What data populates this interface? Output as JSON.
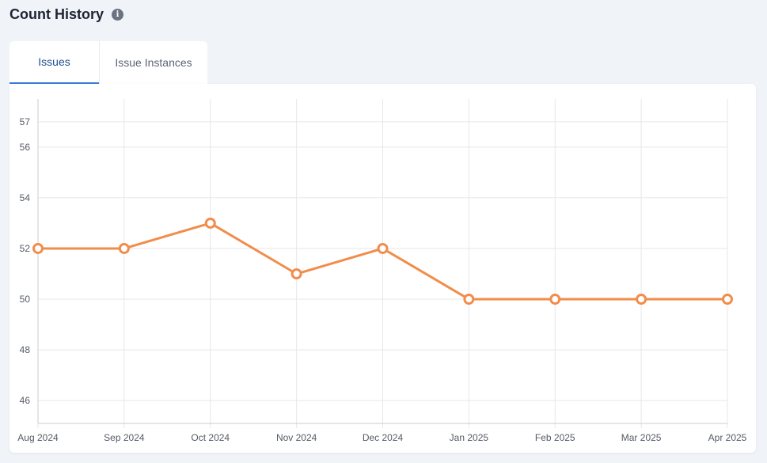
{
  "header": {
    "title": "Count History",
    "info_icon": "info-icon"
  },
  "tabs": [
    {
      "label": "Issues",
      "active": true
    },
    {
      "label": "Issue Instances",
      "active": false
    }
  ],
  "chart_data": {
    "type": "line",
    "title": "",
    "xlabel": "",
    "ylabel": "",
    "categories": [
      "Aug 2024",
      "Sep 2024",
      "Oct 2024",
      "Nov 2024",
      "Dec 2024",
      "Jan 2025",
      "Feb 2025",
      "Mar 2025",
      "Apr 2025"
    ],
    "series": [
      {
        "values": [
          52,
          52,
          53,
          51,
          52,
          50,
          50,
          50,
          50
        ],
        "color": "#f28c4a"
      }
    ],
    "yticks": [
      46,
      48,
      50,
      52,
      54,
      56,
      57
    ],
    "ylim": [
      45.1,
      57.9
    ],
    "grid": true,
    "legend": "none"
  }
}
